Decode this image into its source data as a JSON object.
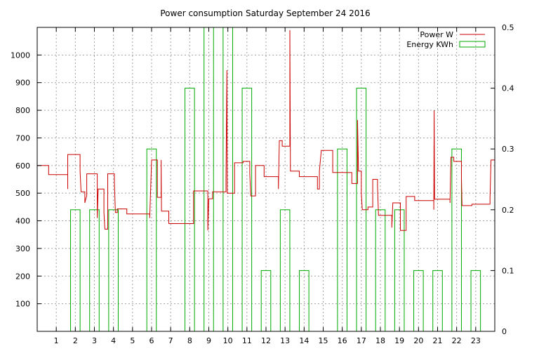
{
  "chart_data": {
    "type": "line",
    "title": "Power consumption Saturday September 24 2016",
    "grid": true,
    "legend_placement": "top-right",
    "x": {
      "lim": [
        0,
        24
      ],
      "ticks": [
        1,
        2,
        3,
        4,
        5,
        6,
        7,
        8,
        9,
        10,
        11,
        12,
        13,
        14,
        15,
        16,
        17,
        18,
        19,
        20,
        21,
        22,
        23
      ],
      "tick_labels": [
        "1",
        "2",
        "3",
        "4",
        "5",
        "6",
        "7",
        "8",
        "9",
        "10",
        "11",
        "12",
        "13",
        "14",
        "15",
        "16",
        "17",
        "18",
        "19",
        "20",
        "21",
        "22",
        "23"
      ]
    },
    "y_left": {
      "lim": [
        0,
        1100
      ],
      "ticks": [
        100,
        200,
        300,
        400,
        500,
        600,
        700,
        800,
        900,
        1000
      ],
      "tick_labels": [
        "100",
        "200",
        "300",
        "400",
        "500",
        "600",
        "700",
        "800",
        "900",
        "1000"
      ]
    },
    "y_right": {
      "lim": [
        0,
        0.5
      ],
      "ticks": [
        0,
        0.1,
        0.2,
        0.3,
        0.4,
        0.5
      ],
      "tick_labels": [
        "0",
        "0.1",
        "0.2",
        "0.3",
        "0.4",
        "0.5"
      ]
    },
    "series": [
      {
        "name": "Power W",
        "axis": "left",
        "style": "steps",
        "color": "#cc0000",
        "points": [
          [
            0,
            600
          ],
          [
            0.6,
            600
          ],
          [
            0.6,
            567
          ],
          [
            1.6,
            567
          ],
          [
            1.6,
            515
          ],
          [
            1.6,
            640
          ],
          [
            2.25,
            640
          ],
          [
            2.25,
            580
          ],
          [
            2.3,
            505
          ],
          [
            2.5,
            505
          ],
          [
            2.5,
            465
          ],
          [
            2.55,
            480
          ],
          [
            2.6,
            490
          ],
          [
            2.6,
            570
          ],
          [
            3.15,
            570
          ],
          [
            3.15,
            410
          ],
          [
            3.2,
            515
          ],
          [
            3.5,
            515
          ],
          [
            3.5,
            430
          ],
          [
            3.55,
            370
          ],
          [
            3.7,
            370
          ],
          [
            3.7,
            570
          ],
          [
            4.05,
            570
          ],
          [
            4.05,
            540
          ],
          [
            4.1,
            430
          ],
          [
            4.2,
            430
          ],
          [
            4.2,
            443
          ],
          [
            4.7,
            443
          ],
          [
            4.7,
            425
          ],
          [
            5.9,
            425
          ],
          [
            5.9,
            410
          ],
          [
            5.95,
            510
          ],
          [
            6.0,
            620
          ],
          [
            6.3,
            620
          ],
          [
            6.3,
            485
          ],
          [
            6.5,
            485
          ],
          [
            6.5,
            620
          ],
          [
            6.52,
            435
          ],
          [
            6.9,
            435
          ],
          [
            6.9,
            390
          ],
          [
            8.2,
            390
          ],
          [
            8.2,
            508
          ],
          [
            8.95,
            508
          ],
          [
            8.95,
            365
          ],
          [
            9.0,
            480
          ],
          [
            9.2,
            480
          ],
          [
            9.2,
            505
          ],
          [
            9.9,
            505
          ],
          [
            9.9,
            548
          ],
          [
            9.95,
            945
          ],
          [
            9.97,
            500
          ],
          [
            10.35,
            500
          ],
          [
            10.35,
            610
          ],
          [
            10.8,
            610
          ],
          [
            10.8,
            615
          ],
          [
            11.15,
            615
          ],
          [
            11.15,
            570
          ],
          [
            11.2,
            490
          ],
          [
            11.45,
            490
          ],
          [
            11.45,
            600
          ],
          [
            11.9,
            600
          ],
          [
            11.9,
            560
          ],
          [
            12.65,
            560
          ],
          [
            12.65,
            515
          ],
          [
            12.7,
            690
          ],
          [
            12.85,
            690
          ],
          [
            12.85,
            670
          ],
          [
            13.25,
            670
          ],
          [
            13.25,
            1090
          ],
          [
            13.28,
            580
          ],
          [
            13.75,
            580
          ],
          [
            13.75,
            560
          ],
          [
            14.7,
            560
          ],
          [
            14.7,
            515
          ],
          [
            14.8,
            515
          ],
          [
            14.8,
            580
          ],
          [
            14.9,
            655
          ],
          [
            15.5,
            655
          ],
          [
            15.5,
            575
          ],
          [
            16.5,
            575
          ],
          [
            16.5,
            535
          ],
          [
            16.8,
            535
          ],
          [
            16.8,
            765
          ],
          [
            16.85,
            580
          ],
          [
            17.0,
            580
          ],
          [
            17.0,
            500
          ],
          [
            17.05,
            440
          ],
          [
            17.35,
            440
          ],
          [
            17.35,
            450
          ],
          [
            17.6,
            450
          ],
          [
            17.6,
            550
          ],
          [
            17.85,
            550
          ],
          [
            17.85,
            525
          ],
          [
            17.9,
            420
          ],
          [
            18.6,
            420
          ],
          [
            18.6,
            375
          ],
          [
            18.65,
            465
          ],
          [
            19.05,
            465
          ],
          [
            19.05,
            365
          ],
          [
            19.35,
            365
          ],
          [
            19.35,
            488
          ],
          [
            19.8,
            488
          ],
          [
            19.8,
            473
          ],
          [
            20.8,
            473
          ],
          [
            20.8,
            440
          ],
          [
            20.82,
            800
          ],
          [
            20.84,
            478
          ],
          [
            21.65,
            478
          ],
          [
            21.65,
            465
          ],
          [
            21.7,
            630
          ],
          [
            21.85,
            630
          ],
          [
            21.85,
            615
          ],
          [
            22.25,
            615
          ],
          [
            22.25,
            555
          ],
          [
            22.28,
            455
          ],
          [
            22.8,
            455
          ],
          [
            22.8,
            460
          ],
          [
            23.75,
            460
          ],
          [
            23.75,
            480
          ],
          [
            23.8,
            620
          ],
          [
            24,
            620
          ]
        ]
      },
      {
        "name": "Energy KWh",
        "axis": "right",
        "style": "boxes",
        "color": "#00aa00",
        "bars": [
          {
            "x0": 1.75,
            "x1": 2.25,
            "value": 0.2
          },
          {
            "x0": 2.75,
            "x1": 3.25,
            "value": 0.2
          },
          {
            "x0": 3.75,
            "x1": 4.25,
            "value": 0.2
          },
          {
            "x0": 5.75,
            "x1": 6.25,
            "value": 0.3
          },
          {
            "x0": 7.75,
            "x1": 8.25,
            "value": 0.4
          },
          {
            "x0": 8.75,
            "x1": 9.25,
            "value": 0.5
          },
          {
            "x0": 9.75,
            "x1": 10.25,
            "value": 0.5
          },
          {
            "x0": 10.75,
            "x1": 11.25,
            "value": 0.4
          },
          {
            "x0": 11.75,
            "x1": 12.25,
            "value": 0.1
          },
          {
            "x0": 12.75,
            "x1": 13.25,
            "value": 0.2
          },
          {
            "x0": 13.75,
            "x1": 14.25,
            "value": 0.1
          },
          {
            "x0": 15.75,
            "x1": 16.25,
            "value": 0.3
          },
          {
            "x0": 16.75,
            "x1": 17.25,
            "value": 0.4
          },
          {
            "x0": 17.75,
            "x1": 18.25,
            "value": 0.2
          },
          {
            "x0": 18.75,
            "x1": 19.25,
            "value": 0.2
          },
          {
            "x0": 19.75,
            "x1": 20.25,
            "value": 0.1
          },
          {
            "x0": 20.75,
            "x1": 21.25,
            "value": 0.1
          },
          {
            "x0": 21.75,
            "x1": 22.25,
            "value": 0.3
          },
          {
            "x0": 22.75,
            "x1": 23.25,
            "value": 0.1
          }
        ]
      }
    ]
  }
}
